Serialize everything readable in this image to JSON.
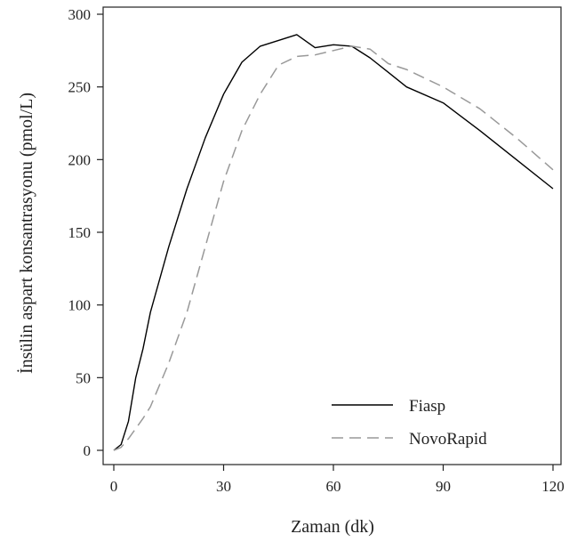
{
  "chart_data": {
    "type": "line",
    "title": "",
    "xlabel": "Zaman (dk)",
    "ylabel": "İnsülin aspart konsantrasyonu (pmol/L)",
    "xlim": [
      0,
      120
    ],
    "ylim": [
      0,
      300
    ],
    "xticks": [
      0,
      30,
      60,
      90,
      120
    ],
    "yticks": [
      0,
      50,
      100,
      150,
      200,
      250,
      300
    ],
    "grid": false,
    "legend_position": "bottom-right",
    "series": [
      {
        "name": "Fiasp",
        "style": "solid",
        "color": "#000000",
        "x": [
          0,
          2,
          4,
          6,
          8,
          10,
          15,
          20,
          25,
          30,
          35,
          40,
          45,
          50,
          55,
          60,
          65,
          70,
          75,
          80,
          90,
          100,
          110,
          120
        ],
        "y": [
          0,
          4,
          20,
          50,
          70,
          95,
          140,
          180,
          215,
          245,
          267,
          278,
          282,
          286,
          277,
          279,
          278,
          270,
          260,
          250,
          239,
          220,
          200,
          180
        ]
      },
      {
        "name": "NovoRapid",
        "style": "dashed",
        "color": "#999999",
        "x": [
          0,
          2,
          4,
          6,
          8,
          10,
          15,
          20,
          25,
          30,
          35,
          40,
          45,
          50,
          55,
          60,
          65,
          70,
          75,
          80,
          90,
          100,
          110,
          120
        ],
        "y": [
          0,
          2,
          8,
          15,
          22,
          30,
          60,
          95,
          140,
          185,
          220,
          245,
          265,
          271,
          272,
          275,
          278,
          276,
          266,
          262,
          250,
          235,
          215,
          193
        ]
      }
    ]
  }
}
